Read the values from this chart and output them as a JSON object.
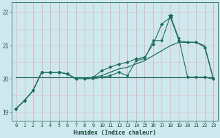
{
  "xlabel": "Humidex (Indice chaleur)",
  "background_color": "#cde8ee",
  "hgrid_color": "#d8c8c8",
  "vgrid_color": "#e8a0a0",
  "line_color": "#1a6b5a",
  "xlim": [
    -0.5,
    23.5
  ],
  "ylim": [
    18.75,
    22.3
  ],
  "yticks": [
    19,
    20,
    21,
    22
  ],
  "xticks": [
    0,
    1,
    2,
    3,
    4,
    5,
    6,
    7,
    8,
    9,
    10,
    11,
    12,
    13,
    14,
    15,
    16,
    17,
    18,
    19,
    20,
    21,
    22,
    23
  ],
  "series1_x": [
    0,
    1,
    2,
    3,
    4,
    5,
    6,
    7,
    8,
    9,
    10,
    11,
    12,
    13,
    14,
    15,
    16,
    17,
    18,
    19,
    20,
    21,
    22,
    23
  ],
  "series1_y": [
    19.1,
    19.35,
    19.65,
    20.2,
    20.2,
    20.2,
    20.15,
    20.0,
    20.0,
    20.05,
    20.1,
    20.2,
    20.3,
    20.35,
    20.45,
    20.55,
    20.7,
    20.85,
    21.0,
    21.1,
    21.1,
    21.1,
    21.0,
    20.0
  ],
  "series2_x": [
    0,
    1,
    2,
    3,
    4,
    5,
    6,
    7,
    8,
    9,
    10,
    11,
    12,
    13,
    14,
    15,
    16,
    17,
    18,
    19,
    20,
    21,
    22,
    23
  ],
  "series2_y": [
    19.1,
    19.35,
    19.65,
    20.2,
    20.2,
    20.2,
    20.15,
    20.0,
    20.0,
    20.05,
    20.25,
    20.35,
    20.45,
    20.5,
    20.6,
    20.65,
    21.05,
    21.65,
    21.85,
    21.15,
    21.1,
    21.1,
    20.95,
    20.0
  ],
  "series3_x": [
    0,
    1,
    2,
    3,
    4,
    5,
    6,
    7,
    8,
    9,
    10,
    11,
    12,
    13,
    14,
    15,
    16,
    17,
    18,
    19,
    20,
    21,
    22,
    23
  ],
  "series3_y": [
    19.1,
    19.35,
    19.65,
    20.2,
    20.2,
    20.2,
    20.15,
    20.0,
    20.0,
    20.0,
    20.05,
    20.1,
    20.2,
    20.1,
    20.55,
    20.6,
    21.15,
    21.15,
    21.9,
    21.2,
    20.05,
    20.05,
    20.05,
    20.0
  ],
  "flat_line_x": [
    0,
    23
  ],
  "flat_line_y": [
    20.05,
    20.05
  ]
}
